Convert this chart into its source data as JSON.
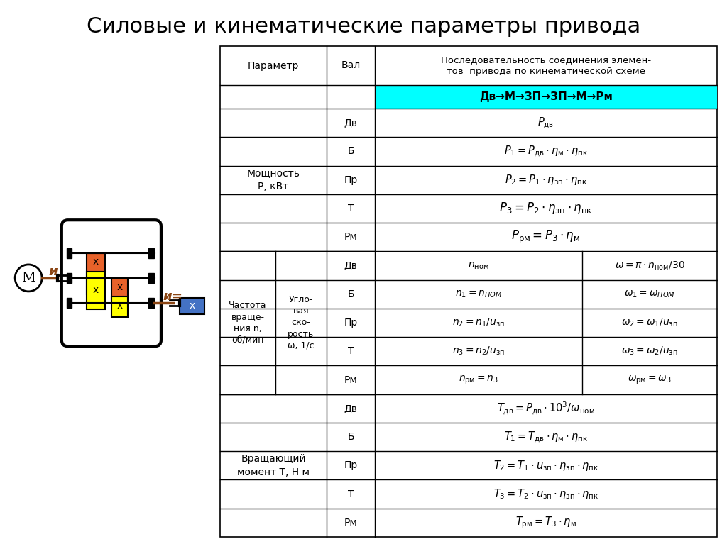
{
  "title": "Силовые и кинематические параметры привода",
  "title_fontsize": 22,
  "bg_color": "#ffffff",
  "cyan_header_color": "#00FFFF",
  "header_row2": "Дв→М→ЗП→ЗП→М→Рм",
  "power_rows": [
    [
      "Дв",
      "$P_{\\rm дв}$"
    ],
    [
      "Б",
      "$P_1 = P_{\\rm дв} \\cdot \\eta_{\\rm м} \\cdot \\eta_{\\rm пк}$"
    ],
    [
      "Пр",
      "$P_2 = P_1 \\cdot \\eta_{\\rm зп} \\cdot \\eta_{\\rm пк}$"
    ],
    [
      "Т",
      "$P_3 = P_2 \\cdot \\eta_{\\rm зп} \\cdot \\eta_{\\rm пк}$"
    ],
    [
      "Рм",
      "$P_{\\rm рм} = P_3 \\cdot \\eta_{\\rm м}$"
    ]
  ],
  "freq_rows": [
    [
      "Дв",
      "$n_{\\rm ном}$",
      "$\\omega = \\pi \\cdot n_{\\rm ном}/30$"
    ],
    [
      "Б",
      "$n_1 = n_{\\it НОМ}$",
      "$\\omega_1 = \\omega_{\\it НОМ}$"
    ],
    [
      "Пр",
      "$n_2 = n_1/u_{\\rm зп}$",
      "$\\omega_2 = \\omega_1/u_{\\rm зп}$"
    ],
    [
      "Т",
      "$n_3 = n_2/u_{\\rm зп}$",
      "$\\omega_3 = \\omega_2/u_{\\rm зп}$"
    ],
    [
      "Рм",
      "$n_{\\rm рм} = n_3$",
      "$\\omega_{\\rm рм} = \\omega_3$"
    ]
  ],
  "torque_rows": [
    [
      "Дв",
      "$T_{\\rm дв} = P_{\\rm дв} \\cdot 10^3/\\omega_{\\rm ном}$"
    ],
    [
      "Б",
      "$T_1 = T_{\\rm дв} \\cdot \\eta_{\\rm м} \\cdot \\eta_{\\rm пк}$"
    ],
    [
      "Пр",
      "$T_2 = T_1 \\cdot u_{\\rm зп} \\cdot \\eta_{\\rm зп} \\cdot \\eta_{\\rm пк}$"
    ],
    [
      "Т",
      "$T_3 = T_2 \\cdot u_{\\rm зп} \\cdot \\eta_{\\rm зп} \\cdot \\eta_{\\rm пк}$"
    ],
    [
      "Рм",
      "$T_{\\rm рм} = T_3 \\cdot \\eta_{\\rm м}$"
    ]
  ]
}
